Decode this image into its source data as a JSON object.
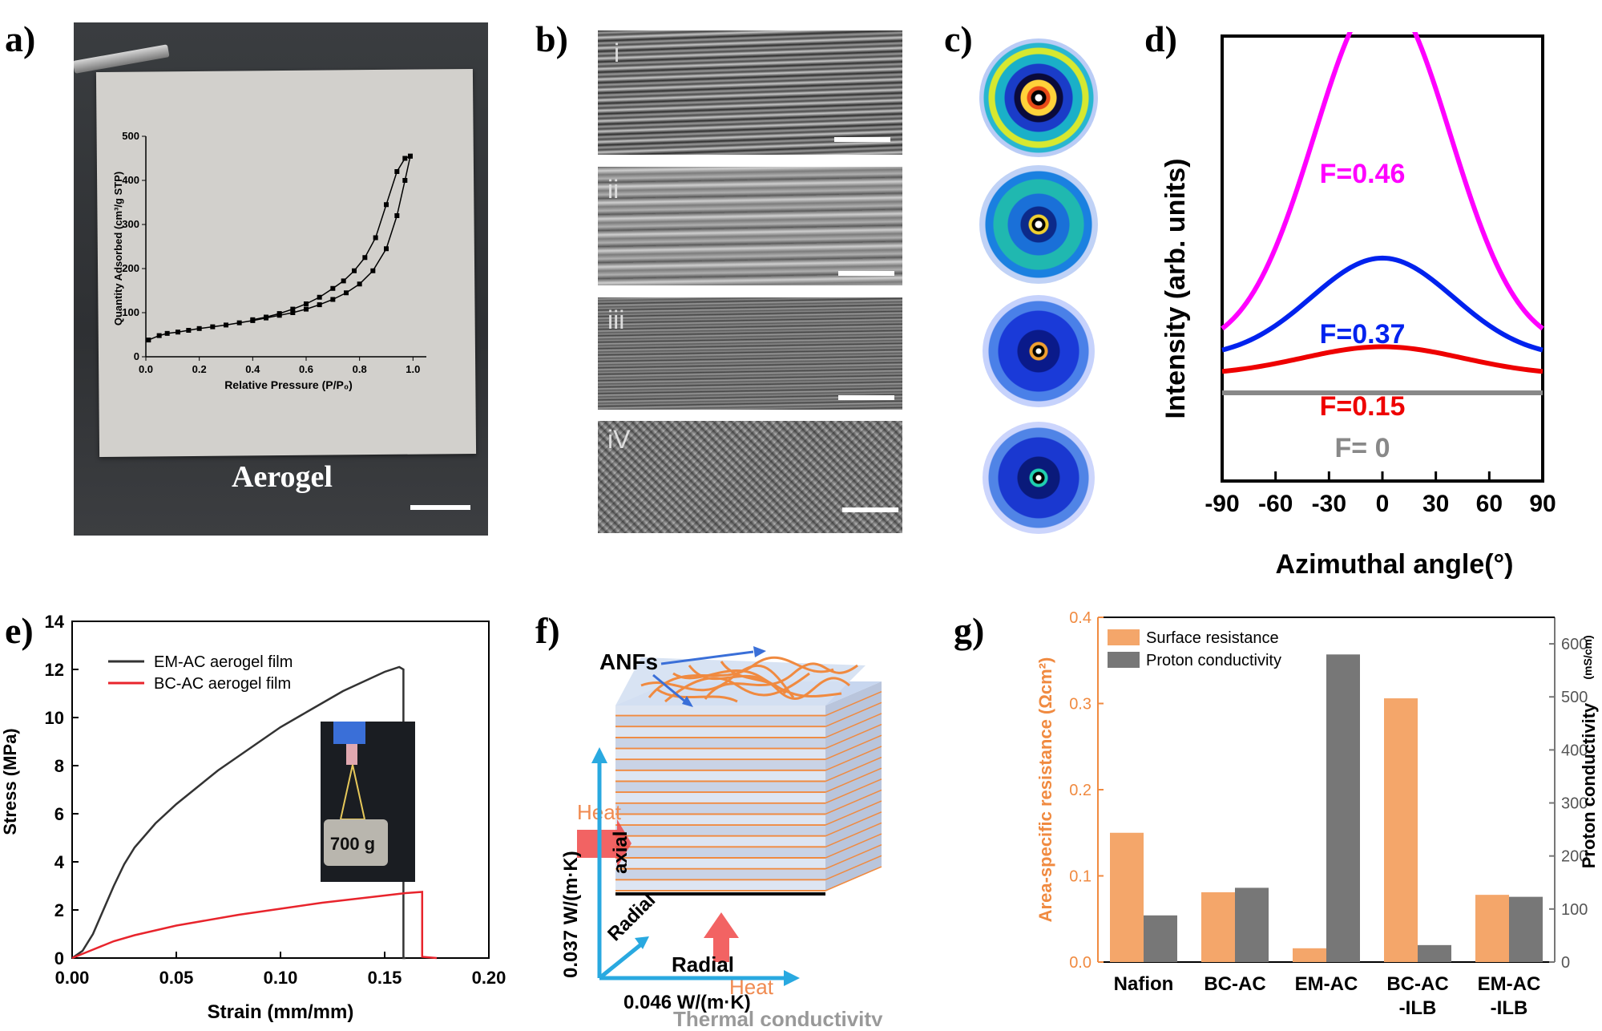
{
  "panels": {
    "a": {
      "label": "a)",
      "caption": "Aerogel",
      "inset": {
        "ylabel": "Quantity Adsorbed (cm³/g STP)",
        "xlabel": "Relative Pressure (P/P₀)",
        "xticks": [
          "0.0",
          "0.2",
          "0.4",
          "0.6",
          "0.8",
          "1.0"
        ],
        "yticks": [
          "0",
          "100",
          "200",
          "300",
          "400",
          "500"
        ]
      }
    },
    "b": {
      "label": "b)",
      "sublabels": [
        "i",
        "ii",
        "iii",
        "iV"
      ]
    },
    "c": {
      "label": "c)"
    },
    "d": {
      "label": "d)",
      "ylabel": "Intensity (arb. units)",
      "xlabel": "Azimuthal angle(°)",
      "xticks": [
        "-90",
        "-60",
        "-30",
        "0",
        "30",
        "60",
        "90"
      ],
      "curve_labels": [
        "F=0.46",
        "F=0.37",
        "F=0.15",
        "F= 0"
      ]
    },
    "e": {
      "label": "e)",
      "ylabel": "Stress (MPa)",
      "xlabel": "Strain (mm/mm)",
      "xticks": [
        "0.00",
        "0.05",
        "0.10",
        "0.15",
        "0.20"
      ],
      "yticks": [
        "0",
        "2",
        "4",
        "6",
        "8",
        "10",
        "12",
        "14"
      ],
      "legend": [
        "EM-AC aerogel film",
        "BC-AC aerogel film"
      ],
      "photo_label": "700 g"
    },
    "f": {
      "label": "f)",
      "anfs": "ANFs",
      "heat_left": "Heat",
      "heat_bottom": "Heat",
      "axial": "axial",
      "radial1": "Radial",
      "radial2": "Radial",
      "k_axial": "0.037 W/(m·K)",
      "k_radial": "0.046 W/(m·K)",
      "title": "Thermal conductivity"
    },
    "g": {
      "label": "g)",
      "ylabel_left": "Area-specific resistance (Ωcm²)",
      "ylabel_right": "Proton conductivity",
      "ylabel_right_unit": "(mS/cm)",
      "yticks_left": [
        "0.0",
        "0.1",
        "0.2",
        "0.3",
        "0.4"
      ],
      "yticks_right": [
        "0",
        "100",
        "200",
        "300",
        "400",
        "500",
        "600"
      ],
      "legend": [
        "Surface resistance",
        "Proton conductivity"
      ],
      "categories": [
        [
          "Nafion",
          ""
        ],
        [
          "BC-AC",
          ""
        ],
        [
          "EM-AC",
          ""
        ],
        [
          "BC-AC",
          "-ILB"
        ],
        [
          "EM-AC",
          "-ILB"
        ]
      ]
    }
  },
  "chart_data": [
    {
      "panel": "a-inset",
      "type": "line",
      "xlabel": "Relative Pressure (P/P₀)",
      "ylabel": "Quantity Adsorbed (cm³/g STP)",
      "xlim": [
        0,
        1.05
      ],
      "ylim": [
        0,
        500
      ],
      "series": [
        {
          "x": [
            0.01,
            0.05,
            0.08,
            0.12,
            0.16,
            0.2,
            0.25,
            0.3,
            0.35,
            0.4,
            0.45,
            0.5,
            0.55,
            0.6,
            0.65,
            0.7,
            0.75,
            0.8,
            0.85,
            0.9,
            0.94,
            0.97,
            0.99
          ],
          "y": [
            38,
            48,
            53,
            56,
            60,
            64,
            68,
            72,
            77,
            82,
            88,
            94,
            100,
            108,
            118,
            130,
            145,
            165,
            195,
            245,
            320,
            400,
            455
          ]
        },
        {
          "x": [
            0.99,
            0.97,
            0.94,
            0.9,
            0.86,
            0.82,
            0.78,
            0.74,
            0.7,
            0.65,
            0.6,
            0.55,
            0.5,
            0.45,
            0.4
          ],
          "y": [
            455,
            450,
            420,
            345,
            270,
            225,
            195,
            172,
            155,
            135,
            120,
            108,
            98,
            90,
            84
          ]
        }
      ]
    },
    {
      "panel": "d",
      "type": "line",
      "xlabel": "Azimuthal angle(°)",
      "ylabel": "Intensity (arb. units)",
      "xlim": [
        -90,
        90
      ],
      "colors": [
        "#ff00ff",
        "#0022ee",
        "#ee0000",
        "#888888"
      ],
      "series": [
        {
          "name": "F=0.46",
          "center": 0,
          "baseline": 0.18,
          "peak": 1.0,
          "sigma": 38
        },
        {
          "name": "F=0.37",
          "center": 0,
          "baseline": 0.12,
          "peak": 0.28,
          "sigma": 40
        },
        {
          "name": "F=0.15",
          "center": 0,
          "baseline": 0.06,
          "peak": 0.08,
          "sigma": 45
        },
        {
          "name": "F= 0",
          "center": 0,
          "baseline": 0.0,
          "peak": 0.0,
          "sigma": 40
        }
      ]
    },
    {
      "panel": "e",
      "type": "line",
      "xlabel": "Strain (mm/mm)",
      "ylabel": "Stress (MPa)",
      "xlim": [
        0,
        0.2
      ],
      "ylim": [
        0,
        14
      ],
      "colors": [
        "#333333",
        "#e8242c"
      ],
      "series": [
        {
          "name": "EM-AC aerogel film",
          "x": [
            0,
            0.005,
            0.01,
            0.015,
            0.02,
            0.025,
            0.03,
            0.04,
            0.05,
            0.06,
            0.07,
            0.08,
            0.09,
            0.1,
            0.11,
            0.12,
            0.13,
            0.14,
            0.15,
            0.157,
            0.159,
            0.159,
            0.16
          ],
          "y": [
            0,
            0.3,
            1.0,
            2.0,
            3.0,
            3.9,
            4.6,
            5.6,
            6.4,
            7.1,
            7.8,
            8.4,
            9.0,
            9.6,
            10.1,
            10.6,
            11.1,
            11.5,
            11.9,
            12.1,
            12.0,
            0,
            0
          ]
        },
        {
          "name": "BC-AC aerogel film",
          "x": [
            0,
            0.01,
            0.02,
            0.03,
            0.04,
            0.05,
            0.06,
            0.08,
            0.1,
            0.12,
            0.14,
            0.16,
            0.168,
            0.168,
            0.175
          ],
          "y": [
            0,
            0.35,
            0.7,
            0.95,
            1.15,
            1.35,
            1.5,
            1.8,
            2.05,
            2.3,
            2.5,
            2.7,
            2.75,
            0.05,
            0.0
          ]
        }
      ]
    },
    {
      "panel": "g",
      "type": "bar",
      "categories": [
        "Nafion",
        "BC-AC",
        "EM-AC",
        "BC-AC -ILB",
        "EM-AC -ILB"
      ],
      "ylabel_left": "Area-specific resistance (Ωcm²)",
      "ylabel_right": "Proton conductivity (mS/cm)",
      "ylim_left": [
        0,
        0.4
      ],
      "ylim_right": [
        0,
        650
      ],
      "colors": [
        "#f4a66a",
        "#777777"
      ],
      "series": [
        {
          "name": "Surface resistance",
          "axis": "left",
          "values": [
            0.15,
            0.081,
            0.016,
            0.306,
            0.078
          ]
        },
        {
          "name": "Proton conductivity",
          "axis": "right",
          "values": [
            88,
            140,
            580,
            32,
            123
          ]
        }
      ]
    }
  ]
}
